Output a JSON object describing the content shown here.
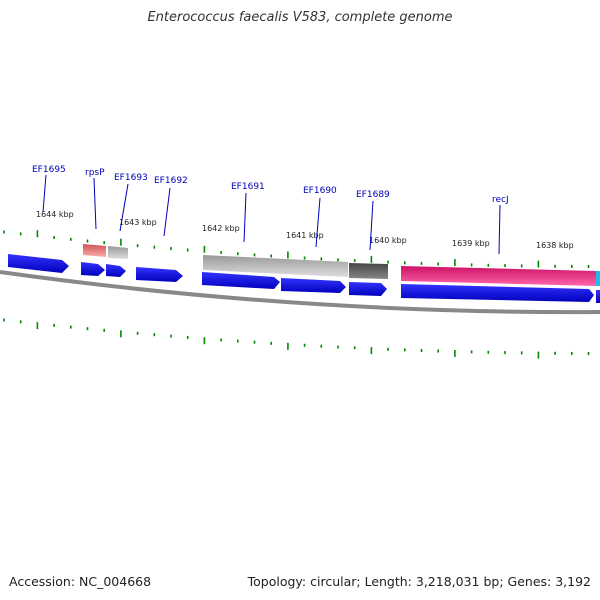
{
  "title": "Enterococcus faecalis V583, complete genome",
  "footer": {
    "accession": "Accession: NC_004668",
    "stats": "Topology: circular; Length: 3,218,031 bp; Genes: 3,192"
  },
  "scale_labels": [
    "1644 kbp",
    "1643 kbp",
    "1642 kbp",
    "1641 kbp",
    "1640 kbp",
    "1639 kbp",
    "1638 kbp"
  ],
  "gene_labels": [
    "EF1695",
    "rpsP",
    "EF1693",
    "EF1692",
    "EF1691",
    "EF1690",
    "EF1689",
    "recJ"
  ],
  "colors": {
    "cds": "#0000ee",
    "rna_pink": "#ee2288",
    "pseudo_gray": "#bbbbbb",
    "dark_gray": "#666666",
    "salmon": "#ee7777",
    "cyan": "#22bbee",
    "ticks": "#008800",
    "label": "#0000bb",
    "backbone": "#888888"
  }
}
